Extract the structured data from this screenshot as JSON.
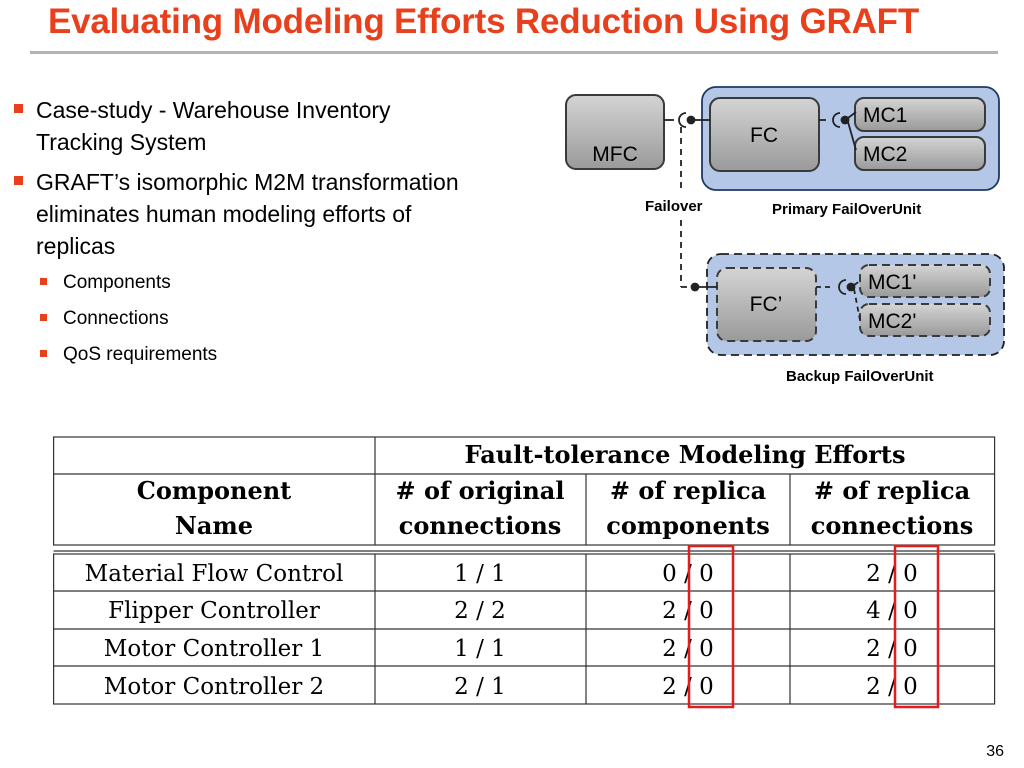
{
  "slide": {
    "title": "Evaluating Modeling Efforts Reduction Using GRAFT",
    "page_number": "36",
    "accent_color": "#e8401c"
  },
  "bullets": [
    {
      "text_line1": "Case-study - Warehouse Inventory",
      "text_line2": "Tracking System"
    },
    {
      "text_line1": "GRAFT’s isomorphic M2M transformation",
      "text_line2": "eliminates human modeling efforts of",
      "text_line3": "replicas"
    }
  ],
  "sub_bullets": [
    "Components",
    "Connections",
    "QoS requirements"
  ],
  "diagram": {
    "mfc": "MFC",
    "fc": "FC",
    "mc1": "MC1",
    "mc2": "MC2",
    "fc_backup": "FC’",
    "mc1_backup": "MC1'",
    "mc2_backup": "MC2'",
    "failover": "Failover",
    "primary_label": "Primary FailOverUnit",
    "backup_label": "Backup FailOverUnit",
    "primary_fill": "#b4c7e7",
    "component_fill": "#b0b0b0"
  },
  "table": {
    "group_header": "Fault-tolerance Modeling Efforts",
    "columns": [
      {
        "line1": "Component",
        "line2": "Name"
      },
      {
        "line1": "# of original",
        "line2": "connections"
      },
      {
        "line1": "# of replica",
        "line2": "components"
      },
      {
        "line1": "# of replica",
        "line2": "connections"
      }
    ],
    "rows": [
      [
        "Material Flow Control",
        "1 / 1",
        "0 / 0",
        "2 / 0"
      ],
      [
        "Flipper Controller",
        "2 / 2",
        "2 / 0",
        "4 / 0"
      ],
      [
        "Motor Controller 1",
        "1 / 1",
        "2 / 0",
        "2 / 0"
      ],
      [
        "Motor Controller 2",
        "2 / 1",
        "2 / 0",
        "2 / 0"
      ]
    ],
    "highlight_color": "#e41c1c"
  }
}
